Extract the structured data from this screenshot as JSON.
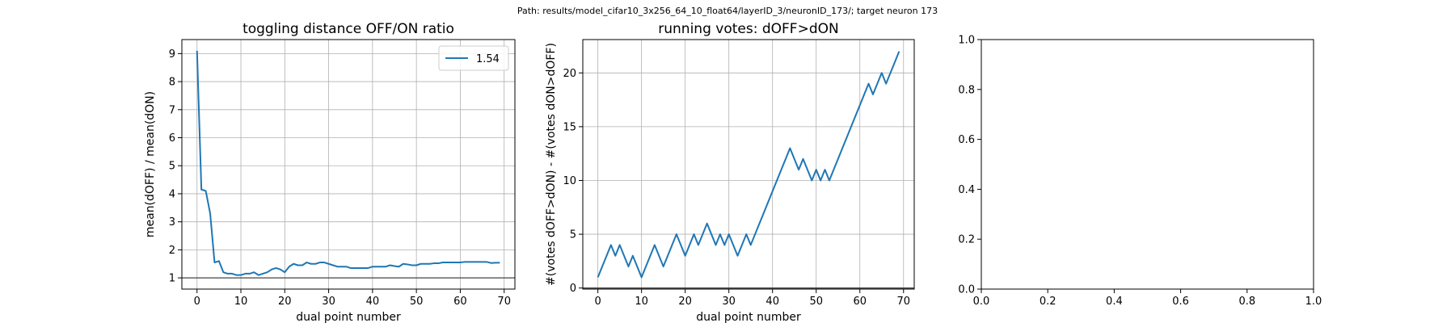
{
  "figure": {
    "suptitle": "Path: results/model_cifar10_3x256_64_10_float64/layerID_3/neuronID_173/; target neuron 173"
  },
  "chart_data": [
    {
      "type": "line",
      "title": "toggling distance OFF/ON ratio",
      "xlabel": "dual point number",
      "ylabel": "mean(dOFF) / mean(dON)",
      "xlim": [
        -3.45,
        72.45
      ],
      "ylim": [
        0.6,
        9.5
      ],
      "xticks": [
        0,
        10,
        20,
        30,
        40,
        50,
        60,
        70
      ],
      "yticks": [
        1,
        2,
        3,
        4,
        5,
        6,
        7,
        8,
        9
      ],
      "grid": true,
      "legend_position": "top-right",
      "hline": 1,
      "series": [
        {
          "name": "1.54",
          "color": "#1f77b4",
          "x": [
            0,
            1,
            2,
            3,
            4,
            5,
            6,
            7,
            8,
            9,
            10,
            11,
            12,
            13,
            14,
            15,
            16,
            17,
            18,
            19,
            20,
            21,
            22,
            23,
            24,
            25,
            26,
            27,
            28,
            29,
            30,
            31,
            32,
            33,
            34,
            35,
            36,
            37,
            38,
            39,
            40,
            41,
            42,
            43,
            44,
            45,
            46,
            47,
            48,
            49,
            50,
            51,
            52,
            53,
            54,
            55,
            56,
            57,
            58,
            59,
            60,
            61,
            62,
            63,
            64,
            65,
            66,
            67,
            68,
            69
          ],
          "y": [
            9.1,
            4.15,
            4.1,
            3.3,
            1.55,
            1.6,
            1.2,
            1.15,
            1.15,
            1.1,
            1.1,
            1.15,
            1.15,
            1.2,
            1.1,
            1.15,
            1.2,
            1.3,
            1.35,
            1.3,
            1.2,
            1.4,
            1.5,
            1.45,
            1.45,
            1.55,
            1.5,
            1.5,
            1.55,
            1.55,
            1.5,
            1.45,
            1.4,
            1.4,
            1.4,
            1.35,
            1.35,
            1.35,
            1.35,
            1.35,
            1.4,
            1.4,
            1.4,
            1.4,
            1.45,
            1.42,
            1.4,
            1.5,
            1.48,
            1.45,
            1.45,
            1.5,
            1.5,
            1.5,
            1.52,
            1.52,
            1.55,
            1.55,
            1.55,
            1.55,
            1.55,
            1.57,
            1.57,
            1.57,
            1.57,
            1.57,
            1.57,
            1.53,
            1.54,
            1.54
          ]
        }
      ]
    },
    {
      "type": "line",
      "title": "running votes: dOFF>dON",
      "xlabel": "dual point number",
      "ylabel": "#(votes dOFF>dON) - #(votes dON>dOFF)",
      "xlim": [
        -3.45,
        72.45
      ],
      "ylim": [
        -0.1,
        23.1
      ],
      "xticks": [
        0,
        10,
        20,
        30,
        40,
        50,
        60,
        70
      ],
      "yticks": [
        0,
        5,
        10,
        15,
        20
      ],
      "grid": true,
      "hline": 0,
      "series": [
        {
          "color": "#1f77b4",
          "x": [
            0,
            1,
            2,
            3,
            4,
            5,
            6,
            7,
            8,
            9,
            10,
            11,
            12,
            13,
            14,
            15,
            16,
            17,
            18,
            19,
            20,
            21,
            22,
            23,
            24,
            25,
            26,
            27,
            28,
            29,
            30,
            31,
            32,
            33,
            34,
            35,
            36,
            37,
            38,
            39,
            40,
            41,
            42,
            43,
            44,
            45,
            46,
            47,
            48,
            49,
            50,
            51,
            52,
            53,
            54,
            55,
            56,
            57,
            58,
            59,
            60,
            61,
            62,
            63,
            64,
            65,
            66,
            67,
            68,
            69
          ],
          "y": [
            1,
            2,
            3,
            4,
            3,
            4,
            3,
            2,
            3,
            2,
            1,
            2,
            3,
            4,
            3,
            2,
            3,
            4,
            5,
            4,
            3,
            4,
            5,
            4,
            5,
            6,
            5,
            4,
            5,
            4,
            5,
            4,
            3,
            4,
            5,
            4,
            5,
            6,
            7,
            8,
            9,
            10,
            11,
            12,
            13,
            12,
            11,
            12,
            11,
            10,
            11,
            10,
            11,
            10,
            11,
            12,
            13,
            14,
            15,
            16,
            17,
            18,
            19,
            18,
            19,
            20,
            19,
            20,
            21,
            22
          ]
        }
      ]
    },
    {
      "type": "line",
      "title": "",
      "xlabel": "",
      "ylabel": "",
      "xlim": [
        0,
        1
      ],
      "ylim": [
        0,
        1
      ],
      "xticks": [
        0.0,
        0.2,
        0.4,
        0.6,
        0.8,
        1.0
      ],
      "yticks": [
        0.0,
        0.2,
        0.4,
        0.6,
        0.8,
        1.0
      ],
      "grid": false,
      "series": []
    }
  ]
}
